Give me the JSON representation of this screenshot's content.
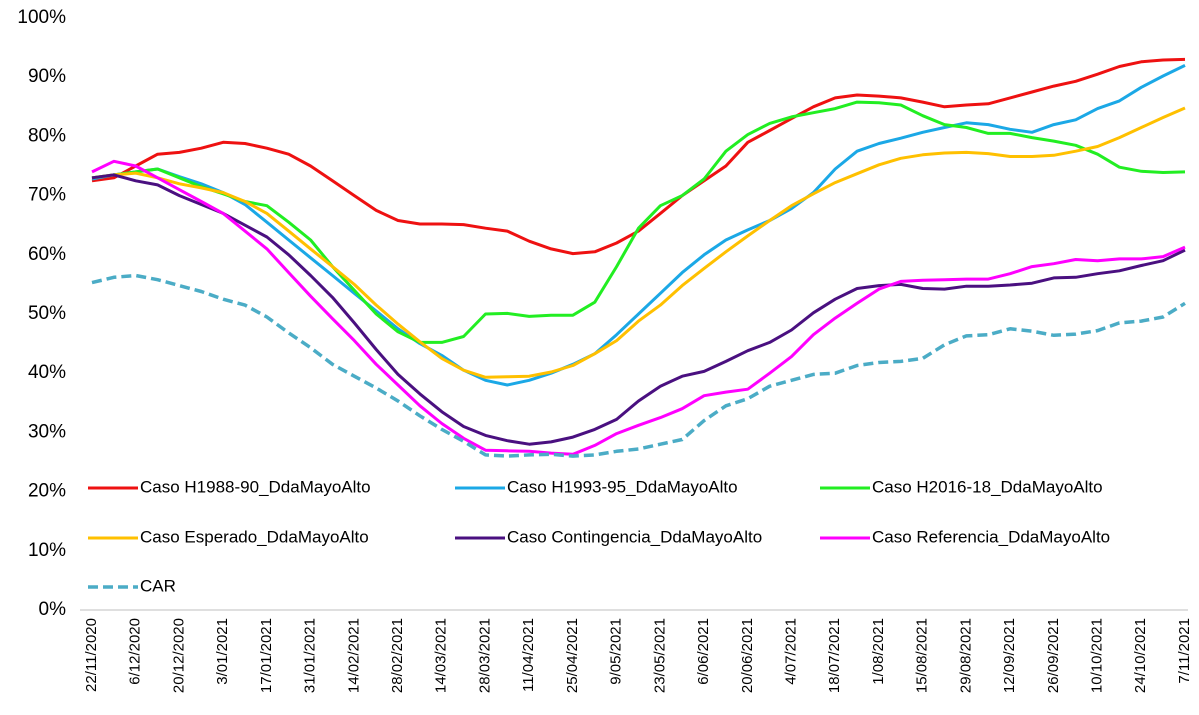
{
  "chart_data": {
    "type": "line",
    "categories": [
      "22/11/2020",
      null,
      "6/12/2020",
      null,
      "20/12/2020",
      null,
      "3/01/2021",
      null,
      "17/01/2021",
      null,
      "31/01/2021",
      null,
      "14/02/2021",
      null,
      "28/02/2021",
      null,
      "14/03/2021",
      null,
      "28/03/2021",
      null,
      "11/04/2021",
      null,
      "25/04/2021",
      null,
      "9/05/2021",
      null,
      "23/05/2021",
      null,
      "6/06/2021",
      null,
      "20/06/2021",
      null,
      "4/07/2021",
      null,
      "18/07/2021",
      null,
      "1/08/2021",
      null,
      "15/08/2021",
      null,
      "29/08/2021",
      null,
      "12/09/2021",
      null,
      "26/09/2021",
      null,
      "10/10/2021",
      null,
      "24/10/2021",
      null,
      "7/11/2021"
    ],
    "series": [
      {
        "name": "Caso H1988-90_DdaMayoAlto",
        "color": "#ee1111",
        "values": [
          72.5,
          73,
          75,
          77,
          77.3,
          78,
          79,
          78.8,
          78,
          77,
          75,
          72.5,
          70,
          67.5,
          65.8,
          65.2,
          65.2,
          65.1,
          64.5,
          64,
          62.3,
          61,
          60.2,
          60.5,
          62,
          64,
          67,
          70,
          72.5,
          75,
          79,
          81,
          83,
          85,
          86.5,
          87,
          86.8,
          86.5,
          85.8,
          85,
          85.3,
          85.5,
          86.5,
          87.5,
          88.5,
          89.3,
          90.5,
          91.8,
          92.6,
          92.9,
          93
        ]
      },
      {
        "name": "Caso H1993-95_DdaMayoAlto",
        "color": "#1ba8e6",
        "values": [
          72.8,
          73.5,
          74,
          74.5,
          73.2,
          72,
          70.5,
          68.5,
          65.5,
          62.5,
          59.5,
          56.5,
          53.5,
          50.5,
          47.5,
          45,
          43,
          40.5,
          38.8,
          38,
          38.8,
          40,
          41.5,
          43.3,
          46.5,
          50,
          53.5,
          57,
          60,
          62.5,
          64.2,
          65.8,
          67.8,
          70.5,
          74.5,
          77.5,
          78.8,
          79.7,
          80.7,
          81.5,
          82.3,
          82,
          81.2,
          80.7,
          82,
          82.8,
          84.7,
          86,
          88.3,
          90.2,
          92
        ]
      },
      {
        "name": "Caso H2016-18_DdaMayoAlto",
        "color": "#22ee22",
        "values": [
          73,
          73.5,
          74,
          74.5,
          73,
          71.5,
          70.3,
          69,
          68.3,
          65.5,
          62.5,
          58,
          54,
          50,
          47,
          45.2,
          45.2,
          46.2,
          50,
          50.1,
          49.6,
          49.8,
          49.8,
          52,
          58,
          64.5,
          68.3,
          70,
          72.8,
          77.5,
          80.3,
          82.2,
          83.3,
          84,
          84.7,
          85.8,
          85.7,
          85.3,
          83.5,
          82,
          81.5,
          80.5,
          80.5,
          79.8,
          79.2,
          78.5,
          77,
          74.8,
          74.1,
          73.9,
          74
        ]
      },
      {
        "name": "Caso Esperado_DdaMayoAlto",
        "color": "#ffc000",
        "values": [
          73,
          73.5,
          73.8,
          73,
          72,
          71.3,
          70.5,
          69,
          67,
          64,
          61,
          58,
          55,
          51.5,
          48.3,
          45.3,
          42.5,
          40.5,
          39.3,
          39.4,
          39.5,
          40.2,
          41.3,
          43.3,
          45.5,
          48.8,
          51.5,
          54.8,
          57.7,
          60.5,
          63.2,
          65.8,
          68.3,
          70.3,
          72.2,
          73.7,
          75.2,
          76.3,
          76.9,
          77.2,
          77.3,
          77.1,
          76.6,
          76.6,
          76.8,
          77.5,
          78.3,
          79.8,
          81.5,
          83.2,
          84.8
        ]
      },
      {
        "name": "Caso Contingencia_DdaMayoAlto",
        "color": "#4a1080",
        "values": [
          73,
          73.5,
          72.5,
          71.8,
          70,
          68.5,
          67,
          65,
          63,
          60,
          56.5,
          52.8,
          48.5,
          44,
          39.8,
          36.5,
          33.5,
          31,
          29.5,
          28.6,
          28,
          28.4,
          29.2,
          30.5,
          32.2,
          35.3,
          37.8,
          39.5,
          40.3,
          42,
          43.8,
          45.2,
          47.3,
          50.2,
          52.5,
          54.3,
          54.8,
          55,
          54.3,
          54.2,
          54.7,
          54.7,
          54.9,
          55.2,
          56.1,
          56.2,
          56.8,
          57.3,
          58.2,
          59,
          60.8
        ]
      },
      {
        "name": "Caso Referencia_DdaMayoAlto",
        "color": "#ff00ff",
        "values": [
          74,
          75.8,
          75,
          73,
          71,
          69,
          67,
          64,
          61,
          57,
          53,
          49.2,
          45.5,
          41.5,
          38,
          34.5,
          31.5,
          29,
          27,
          26.9,
          26.8,
          26.5,
          26.3,
          27.8,
          29.8,
          31.2,
          32.5,
          34,
          36.2,
          36.8,
          37.3,
          40,
          42.8,
          46.5,
          49.3,
          51.8,
          54.2,
          55.5,
          55.7,
          55.8,
          55.9,
          55.9,
          56.8,
          58,
          58.5,
          59.2,
          59,
          59.3,
          59.3,
          59.7,
          61.3
        ]
      },
      {
        "name": "CAR",
        "color": "#4bacc6",
        "dash": true,
        "values": [
          55.3,
          56.2,
          56.5,
          55.8,
          54.8,
          53.8,
          52.5,
          51.5,
          49.5,
          46.8,
          44.3,
          41.5,
          39.5,
          37.5,
          35.3,
          32.8,
          30.5,
          28.5,
          26.2,
          26,
          26.2,
          26.3,
          26,
          26.2,
          26.8,
          27.2,
          28,
          28.8,
          32,
          34.5,
          35.7,
          37.8,
          38.8,
          39.8,
          40,
          41.3,
          41.8,
          42,
          42.5,
          44.8,
          46.3,
          46.5,
          47.5,
          47.1,
          46.4,
          46.6,
          47.2,
          48.5,
          48.8,
          49.5,
          51.8
        ]
      }
    ],
    "ylim": [
      0,
      100
    ],
    "yticks": [
      {
        "value": 0,
        "label": "0%"
      },
      {
        "value": 10,
        "label": "10%"
      },
      {
        "value": 20,
        "label": "20%"
      },
      {
        "value": 30,
        "label": "30%"
      },
      {
        "value": 40,
        "label": "40%"
      },
      {
        "value": 50,
        "label": "50%"
      },
      {
        "value": 60,
        "label": "60%"
      },
      {
        "value": 70,
        "label": "70%"
      },
      {
        "value": 80,
        "label": "80%"
      },
      {
        "value": 90,
        "label": "90%"
      },
      {
        "value": 100,
        "label": "100%"
      }
    ],
    "grid": false,
    "legend_columns": 3
  }
}
